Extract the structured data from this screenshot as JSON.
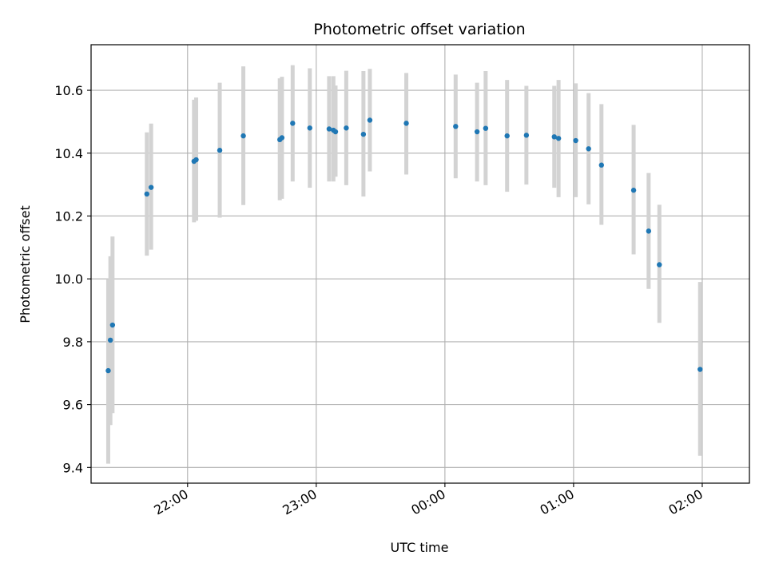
{
  "chart_data": {
    "type": "scatter",
    "title": "Photometric offset variation",
    "xlabel": "UTC time",
    "ylabel": "Photometric offset",
    "ylim": [
      9.35,
      10.745
    ],
    "xlim": [
      "21:15",
      "02:22"
    ],
    "yticks": [
      "9.4",
      "9.6",
      "9.8",
      "10.0",
      "10.2",
      "10.4",
      "10.6"
    ],
    "xticks": [
      "22:00",
      "23:00",
      "00:00",
      "01:00",
      "02:00"
    ],
    "grid": true,
    "colors": {
      "point": "#1f77b4",
      "errorbar": "#d3d3d3",
      "grid": "#b0b0b0"
    },
    "points": [
      {
        "x": "21:23",
        "y": 9.708,
        "lo": 9.412,
        "hi": 10.0
      },
      {
        "x": "21:24",
        "y": 9.805,
        "lo": 9.535,
        "hi": 10.072
      },
      {
        "x": "21:25",
        "y": 9.853,
        "lo": 9.573,
        "hi": 10.135
      },
      {
        "x": "21:41",
        "y": 10.27,
        "lo": 10.074,
        "hi": 10.466
      },
      {
        "x": "21:43",
        "y": 10.291,
        "lo": 10.093,
        "hi": 10.494
      },
      {
        "x": "22:03",
        "y": 10.374,
        "lo": 10.18,
        "hi": 10.57
      },
      {
        "x": "22:04",
        "y": 10.379,
        "lo": 10.185,
        "hi": 10.577
      },
      {
        "x": "22:15",
        "y": 10.409,
        "lo": 10.195,
        "hi": 10.624
      },
      {
        "x": "22:26",
        "y": 10.455,
        "lo": 10.235,
        "hi": 10.676
      },
      {
        "x": "22:43",
        "y": 10.443,
        "lo": 10.25,
        "hi": 10.638
      },
      {
        "x": "22:44",
        "y": 10.449,
        "lo": 10.255,
        "hi": 10.643
      },
      {
        "x": "22:49",
        "y": 10.495,
        "lo": 10.31,
        "hi": 10.68
      },
      {
        "x": "22:57",
        "y": 10.48,
        "lo": 10.29,
        "hi": 10.67
      },
      {
        "x": "23:06",
        "y": 10.477,
        "lo": 10.31,
        "hi": 10.645
      },
      {
        "x": "23:08",
        "y": 10.473,
        "lo": 10.31,
        "hi": 10.645
      },
      {
        "x": "23:09",
        "y": 10.468,
        "lo": 10.325,
        "hi": 10.615
      },
      {
        "x": "23:14",
        "y": 10.48,
        "lo": 10.298,
        "hi": 10.662
      },
      {
        "x": "23:22",
        "y": 10.46,
        "lo": 10.262,
        "hi": 10.661
      },
      {
        "x": "23:25",
        "y": 10.505,
        "lo": 10.342,
        "hi": 10.668
      },
      {
        "x": "23:42",
        "y": 10.495,
        "lo": 10.332,
        "hi": 10.655
      },
      {
        "x": "00:05",
        "y": 10.485,
        "lo": 10.32,
        "hi": 10.65
      },
      {
        "x": "00:15",
        "y": 10.468,
        "lo": 10.31,
        "hi": 10.624
      },
      {
        "x": "00:19",
        "y": 10.479,
        "lo": 10.298,
        "hi": 10.661
      },
      {
        "x": "00:29",
        "y": 10.455,
        "lo": 10.277,
        "hi": 10.633
      },
      {
        "x": "00:38",
        "y": 10.457,
        "lo": 10.3,
        "hi": 10.614
      },
      {
        "x": "00:51",
        "y": 10.452,
        "lo": 10.29,
        "hi": 10.614
      },
      {
        "x": "00:53",
        "y": 10.447,
        "lo": 10.26,
        "hi": 10.633
      },
      {
        "x": "01:01",
        "y": 10.44,
        "lo": 10.26,
        "hi": 10.622
      },
      {
        "x": "01:07",
        "y": 10.414,
        "lo": 10.237,
        "hi": 10.591
      },
      {
        "x": "01:13",
        "y": 10.362,
        "lo": 10.172,
        "hi": 10.556
      },
      {
        "x": "01:28",
        "y": 10.282,
        "lo": 10.078,
        "hi": 10.49
      },
      {
        "x": "01:35",
        "y": 10.152,
        "lo": 9.968,
        "hi": 10.337
      },
      {
        "x": "01:40",
        "y": 10.045,
        "lo": 9.86,
        "hi": 10.236
      },
      {
        "x": "01:59",
        "y": 9.712,
        "lo": 9.437,
        "hi": 9.99
      }
    ]
  }
}
